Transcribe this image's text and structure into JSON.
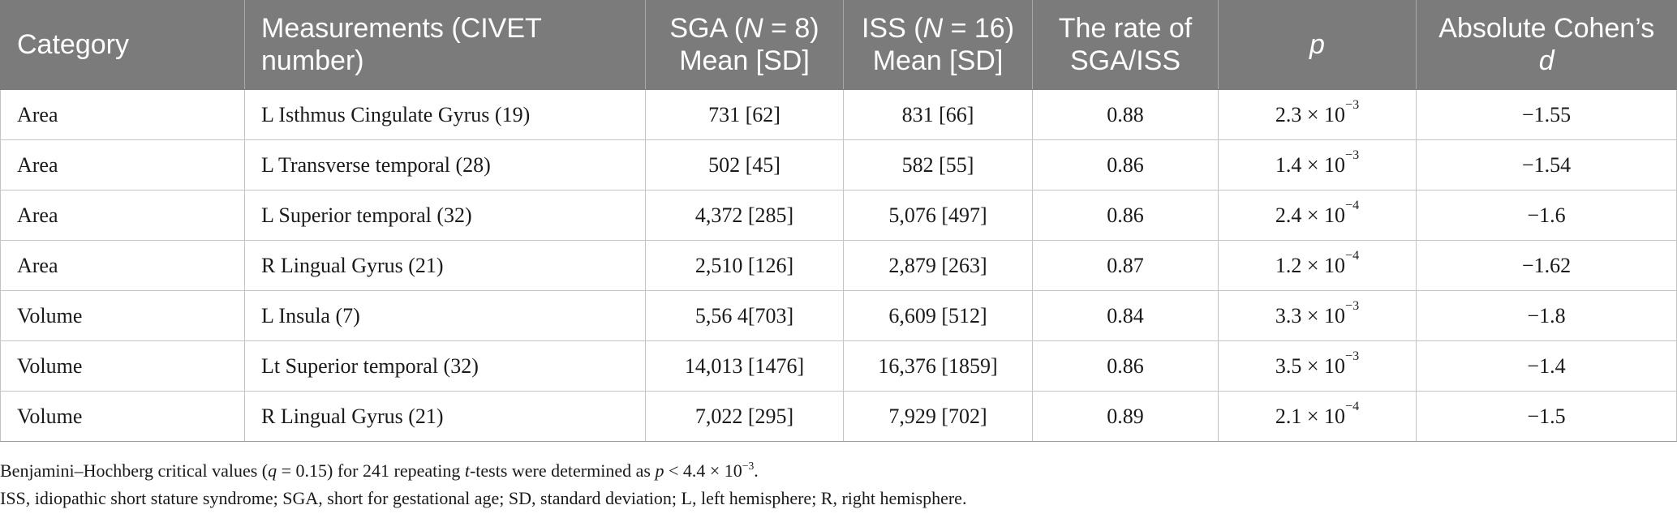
{
  "table": {
    "headers": [
      {
        "parts": [
          {
            "t": "Category"
          }
        ]
      },
      {
        "parts": [
          {
            "t": "Measurements (CIVET number)"
          }
        ]
      },
      {
        "parts": [
          {
            "t": "SGA ("
          },
          {
            "t": "N",
            "i": true
          },
          {
            "t": " = 8) Mean [SD]"
          }
        ]
      },
      {
        "parts": [
          {
            "t": "ISS ("
          },
          {
            "t": "N",
            "i": true
          },
          {
            "t": " = 16) Mean [SD]"
          }
        ]
      },
      {
        "parts": [
          {
            "t": "The rate of SGA/ISS"
          }
        ]
      },
      {
        "parts": [
          {
            "t": "p",
            "i": true
          }
        ]
      },
      {
        "parts": [
          {
            "t": "Absolute Cohen’s "
          },
          {
            "t": "d",
            "i": true
          }
        ]
      }
    ],
    "rows": [
      {
        "category": "Area",
        "measurement": "L Isthmus Cingulate Gyrus (19)",
        "sga": "731 [62]",
        "iss": "831 [66]",
        "rate": "0.88",
        "p_base": "2.3 × 10",
        "p_exp": "−3",
        "d": "−1.55"
      },
      {
        "category": "Area",
        "measurement": "L Transverse temporal (28)",
        "sga": "502 [45]",
        "iss": "582 [55]",
        "rate": "0.86",
        "p_base": "1.4 × 10",
        "p_exp": "−3",
        "d": "−1.54"
      },
      {
        "category": "Area",
        "measurement": "L Superior temporal (32)",
        "sga": "4,372 [285]",
        "iss": "5,076 [497]",
        "rate": "0.86",
        "p_base": "2.4 × 10",
        "p_exp": "−4",
        "d": "−1.6"
      },
      {
        "category": "Area",
        "measurement": "R Lingual Gyrus (21)",
        "sga": "2,510 [126]",
        "iss": "2,879 [263]",
        "rate": "0.87",
        "p_base": "1.2 × 10",
        "p_exp": "−4",
        "d": "−1.62"
      },
      {
        "category": "Volume",
        "measurement": "L Insula (7)",
        "sga": "5,56 4[703]",
        "iss": "6,609 [512]",
        "rate": "0.84",
        "p_base": "3.3 × 10",
        "p_exp": "−3",
        "d": "−1.8"
      },
      {
        "category": "Volume",
        "measurement": "Lt Superior temporal (32)",
        "sga": "14,013 [1476]",
        "iss": "16,376 [1859]",
        "rate": "0.86",
        "p_base": "3.5 × 10",
        "p_exp": "−3",
        "d": "−1.4"
      },
      {
        "category": "Volume",
        "measurement": "R Lingual Gyrus (21)",
        "sga": "7,022 [295]",
        "iss": "7,929 [702]",
        "rate": "0.89",
        "p_base": "2.1 × 10",
        "p_exp": "−4",
        "d": "−1.5"
      }
    ]
  },
  "footnotes": [
    {
      "parts": [
        {
          "t": "Benjamini–Hochberg critical values ("
        },
        {
          "t": "q",
          "i": true
        },
        {
          "t": " = 0.15) for 241 repeating "
        },
        {
          "t": "t",
          "i": true
        },
        {
          "t": "-tests were determined as "
        },
        {
          "t": "p",
          "i": true
        },
        {
          "t": " < 4.4 × 10"
        },
        {
          "t": "−3",
          "sup": true
        },
        {
          "t": "."
        }
      ]
    },
    {
      "parts": [
        {
          "t": "ISS, idiopathic short stature syndrome; SGA, short for gestational age; SD, standard deviation; L, left hemisphere; R, right hemisphere."
        }
      ]
    }
  ]
}
